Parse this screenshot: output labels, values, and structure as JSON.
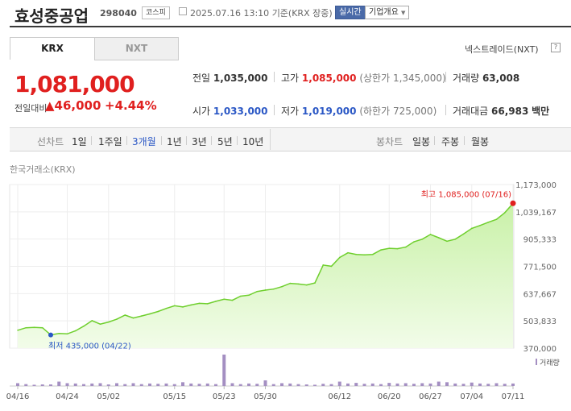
{
  "header": {
    "name": "효성중공업",
    "code": "298040",
    "market_badge": "코스피",
    "datetime": "2025.07.16 13:10",
    "basis": "기준(KRX 장중)",
    "live_btn": "실시간",
    "corp_btn": "기업개요"
  },
  "tabs": {
    "krx": "KRX",
    "nxt": "NXT",
    "nxt_link": "넥스트레이드(NXT)"
  },
  "quote": {
    "price": "1,081,000",
    "change_label": "전일대비",
    "change": "46,000",
    "change_pct": "+4.44%"
  },
  "stats": {
    "prev_label": "전일",
    "prev": "1,035,000",
    "high_label": "고가",
    "high": "1,085,000",
    "upper_limit": "(상한가 1,345,000)",
    "volume_label": "거래량",
    "volume": "63,008",
    "open_label": "시가",
    "open": "1,033,000",
    "low_label": "저가",
    "low": "1,019,000",
    "lower_limit": "(하한가 725,000)",
    "amount_label": "거래대금",
    "amount": "66,983",
    "amount_unit": "백만"
  },
  "periods": {
    "label": "선차트",
    "items": [
      "1일",
      "1주일",
      "3개월",
      "1년",
      "3년",
      "5년",
      "10년"
    ],
    "active": "3개월",
    "candle_label": "봉차트",
    "candle_items": [
      "일봉",
      "주봉",
      "월봉"
    ]
  },
  "colors": {
    "up": "#e0201f",
    "down": "#2a57c5",
    "line": "#6fcf2e",
    "volume": "#a48fc2"
  },
  "chart_data": {
    "type": "area",
    "source_label": "한국거래소(KRX)",
    "y_ticks": [
      1173000,
      1039167,
      905333,
      771500,
      637667,
      503833,
      370000
    ],
    "y_tick_labels": [
      "1,173,000",
      "1,039,167",
      "905,333",
      "771,500",
      "637,667",
      "503,833",
      "370,000"
    ],
    "ylim": [
      370000,
      1173000
    ],
    "x_tick_labels": [
      "04/16",
      "04/24",
      "05/02",
      "05/15",
      "05/23",
      "05/30",
      "06/12",
      "06/20",
      "06/27",
      "07/04",
      "07/11"
    ],
    "x_tick_index": [
      0,
      6,
      11,
      19,
      25,
      30,
      39,
      45,
      50,
      55,
      60
    ],
    "values": [
      458000,
      470000,
      472000,
      470000,
      435000,
      442000,
      440000,
      455000,
      478000,
      505000,
      488000,
      498000,
      512000,
      532000,
      518000,
      528000,
      538000,
      550000,
      565000,
      578000,
      572000,
      582000,
      590000,
      588000,
      600000,
      610000,
      605000,
      625000,
      630000,
      648000,
      655000,
      660000,
      672000,
      688000,
      685000,
      680000,
      690000,
      778000,
      772000,
      815000,
      838000,
      830000,
      828000,
      830000,
      852000,
      860000,
      858000,
      866000,
      892000,
      905000,
      928000,
      912000,
      895000,
      905000,
      930000,
      958000,
      972000,
      988000,
      1002000,
      1035000,
      1081000
    ],
    "high_label": "최고 1,085,000 (07/16)",
    "high_index": 60,
    "low_label": "최저 435,000 (04/22)",
    "low_index": 4,
    "volume_label": "거래량",
    "volume": [
      9,
      6,
      4,
      5,
      5,
      14,
      9,
      8,
      6,
      8,
      9,
      5,
      9,
      6,
      9,
      6,
      8,
      7,
      8,
      6,
      12,
      8,
      7,
      8,
      6,
      100,
      9,
      6,
      8,
      7,
      18,
      6,
      9,
      8,
      6,
      5,
      4,
      7,
      6,
      14,
      8,
      10,
      7,
      8,
      6,
      10,
      8,
      9,
      7,
      9,
      8,
      14,
      12,
      8,
      7,
      11,
      8,
      7,
      9,
      7,
      8
    ]
  }
}
